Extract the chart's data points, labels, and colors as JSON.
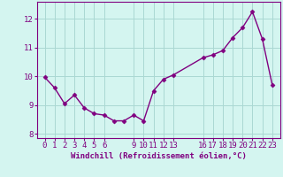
{
  "x": [
    0,
    1,
    2,
    3,
    4,
    5,
    6,
    7,
    8,
    9,
    10,
    11,
    12,
    13,
    16,
    17,
    18,
    19,
    20,
    21,
    22,
    23
  ],
  "y": [
    9.97,
    9.6,
    9.05,
    9.35,
    8.9,
    8.7,
    8.65,
    8.45,
    8.45,
    8.65,
    8.45,
    9.5,
    9.9,
    10.05,
    10.65,
    10.75,
    10.9,
    11.35,
    11.7,
    12.25,
    11.3,
    9.7
  ],
  "line_color": "#800080",
  "marker": "D",
  "marker_size": 2.5,
  "bg_color": "#d4f5f0",
  "grid_color": "#aad8d3",
  "xlabel": "Windchill (Refroidissement éolien,°C)",
  "ylim": [
    7.85,
    12.6
  ],
  "xlim": [
    -0.8,
    23.8
  ],
  "yticks": [
    8,
    9,
    10,
    11,
    12
  ],
  "xtick_positions": [
    0,
    1,
    2,
    3,
    4,
    5,
    6,
    9,
    10,
    11,
    12,
    13,
    16,
    17,
    18,
    19,
    20,
    21,
    22,
    23
  ],
  "xtick_labels": [
    "0",
    "1",
    "2",
    "3",
    "4",
    "5",
    "6",
    "9",
    "10",
    "11",
    "12",
    "13",
    "16",
    "17",
    "18",
    "19",
    "20",
    "21",
    "22",
    "23"
  ],
  "axis_color": "#800080",
  "label_fontsize": 6.5,
  "tick_fontsize": 6.5,
  "linewidth": 1.0
}
